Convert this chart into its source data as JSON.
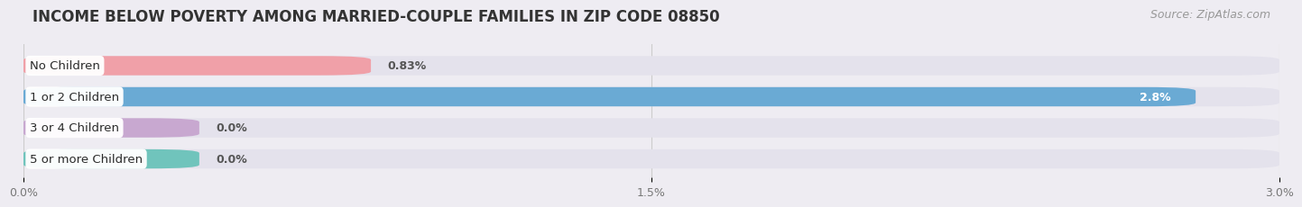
{
  "title": "INCOME BELOW POVERTY AMONG MARRIED-COUPLE FAMILIES IN ZIP CODE 08850",
  "source": "Source: ZipAtlas.com",
  "categories": [
    "No Children",
    "1 or 2 Children",
    "3 or 4 Children",
    "5 or more Children"
  ],
  "values": [
    0.83,
    2.8,
    0.0,
    0.0
  ],
  "bar_colors": [
    "#f0a0a8",
    "#6aaad4",
    "#c8a8d0",
    "#70c4bc"
  ],
  "value_labels": [
    "0.83%",
    "2.8%",
    "0.0%",
    "0.0%"
  ],
  "value_label_inside": [
    false,
    true,
    false,
    false
  ],
  "xlim": [
    0,
    3.0
  ],
  "xticks": [
    0.0,
    1.5,
    3.0
  ],
  "xtick_labels": [
    "0.0%",
    "1.5%",
    "3.0%"
  ],
  "background_color": "#eeecf2",
  "bar_background_color": "#e4e2ec",
  "title_fontsize": 12,
  "source_fontsize": 9,
  "label_fontsize": 9.5,
  "value_fontsize": 9,
  "bar_height": 0.62
}
